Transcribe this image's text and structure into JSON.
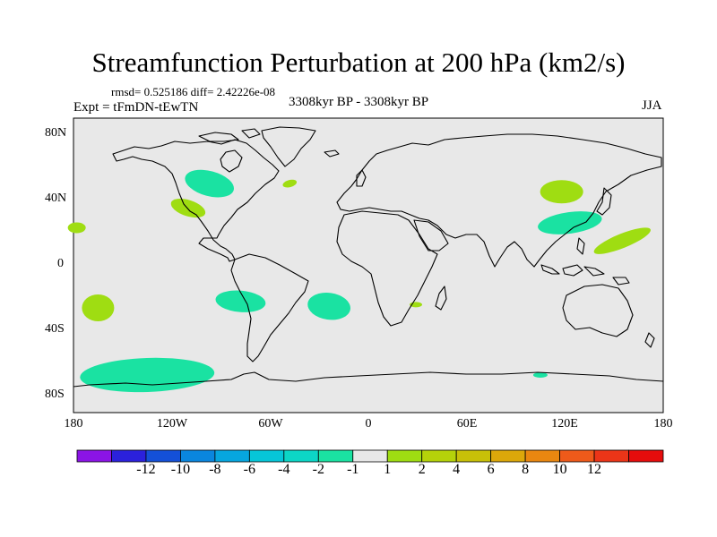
{
  "title": "Streamfunction Perturbation at 200 hPa (km2/s)",
  "stats_line": "rmsd= 0.525186 diff= 2.42226e-08",
  "experiment_line": "Expt = tFmDN-tEwTN",
  "period_line": "3308kyr BP - 3308kyr BP",
  "season": "JJA",
  "map": {
    "projection": "cylindrical-equidistant",
    "lon_range": [
      -180,
      180
    ],
    "lat_range": [
      -90,
      90
    ],
    "background_color": "#e8e8e8",
    "coast_color": "#000000",
    "y_labels": [
      "80N",
      "40N",
      "0",
      "40S",
      "80S"
    ],
    "x_labels": [
      "180",
      "120W",
      "60W",
      "0",
      "60E",
      "120E",
      "180"
    ]
  },
  "anomaly_regions": [
    {
      "name": "north-america-high-lat",
      "lon": -97,
      "lat": 50,
      "sign": "negative",
      "level": "-2 to -1"
    },
    {
      "name": "north-pacific-east",
      "lon": -110,
      "lat": 35,
      "sign": "positive",
      "level": "1 to 2"
    },
    {
      "name": "north-atlantic-central",
      "lon": -48,
      "lat": 50,
      "sign": "positive",
      "level": "1 to 2"
    },
    {
      "name": "central-pacific-edge",
      "lon": -178,
      "lat": 23,
      "sign": "positive",
      "level": "1 to 2"
    },
    {
      "name": "east-asia-north",
      "lon": 118,
      "lat": 45,
      "sign": "positive",
      "level": "1 to 2"
    },
    {
      "name": "east-asia-south",
      "lon": 123,
      "lat": 26,
      "sign": "negative",
      "level": "-2 to -1"
    },
    {
      "name": "west-pacific-diagonal",
      "lon": 155,
      "lat": 15,
      "sign": "positive",
      "level": "1 to 2"
    },
    {
      "name": "south-pacific-west",
      "lon": -165,
      "lat": -26,
      "sign": "positive",
      "level": "1 to 2"
    },
    {
      "name": "south-pacific-east",
      "lon": -78,
      "lat": -22,
      "sign": "negative",
      "level": "-2 to -1"
    },
    {
      "name": "south-atlantic",
      "lon": -24,
      "lat": -25,
      "sign": "negative",
      "level": "-2 to -1"
    },
    {
      "name": "southern-africa",
      "lon": 29,
      "lat": -24,
      "sign": "positive",
      "level": "1 to 2"
    },
    {
      "name": "southern-ocean-pacific",
      "lon": -135,
      "lat": -67,
      "sign": "negative",
      "level": "-2 to -1"
    },
    {
      "name": "southern-ocean-indian",
      "lon": 105,
      "lat": -67,
      "sign": "negative",
      "level": "-2 to -1"
    }
  ],
  "colorbar": {
    "colors": [
      "#8b14e6",
      "#2b21dc",
      "#1450d8",
      "#0a86de",
      "#06a6df",
      "#06c6d8",
      "#0cd6c6",
      "#1ae2a2",
      "#e8e8e8",
      "#9fdd12",
      "#b5d20a",
      "#c8c008",
      "#dca80a",
      "#e98710",
      "#ee5a1a",
      "#eb3518",
      "#e60c0c"
    ],
    "labels": [
      "-12",
      "-10",
      "-8",
      "-6",
      "-4",
      "-2",
      "-1",
      "1",
      "2",
      "4",
      "6",
      "8",
      "10",
      "12"
    ]
  }
}
